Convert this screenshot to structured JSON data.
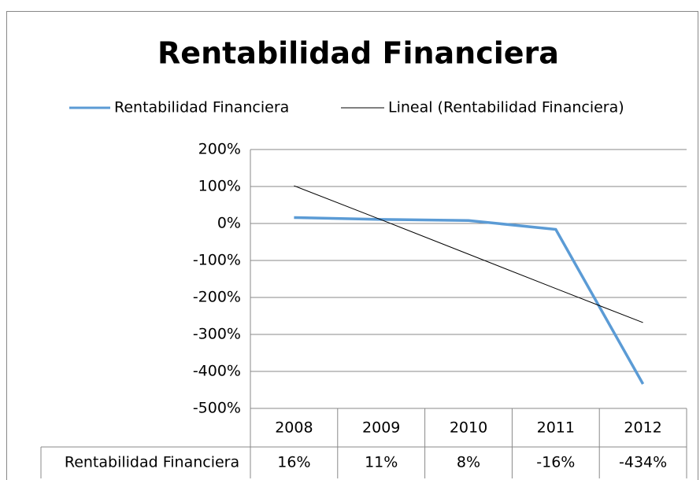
{
  "chart_data": {
    "type": "line",
    "title": "Rentabilidad Financiera",
    "categories": [
      "2008",
      "2009",
      "2010",
      "2011",
      "2012"
    ],
    "series": [
      {
        "name": "Rentabilidad Financiera",
        "color": "#5b9bd5",
        "values": [
          16,
          11,
          8,
          -16,
          -434
        ],
        "value_labels": [
          "16%",
          "11%",
          "8%",
          "-16%",
          "-434%"
        ]
      },
      {
        "name": "Lineal (Rentabilidad Financiera)",
        "color": "#000000",
        "values": [
          102,
          10,
          -83,
          -176,
          -268
        ]
      }
    ],
    "ylim": [
      -500,
      200
    ],
    "yticks": [
      {
        "value": -500,
        "label": "-500%"
      },
      {
        "value": -400,
        "label": "-400%"
      },
      {
        "value": -300,
        "label": "-300%"
      },
      {
        "value": -200,
        "label": "-200%"
      },
      {
        "value": -100,
        "label": "-100%"
      },
      {
        "value": 0,
        "label": "0%"
      },
      {
        "value": 100,
        "label": "100%"
      },
      {
        "value": 200,
        "label": "200%"
      }
    ],
    "grid": true,
    "legend": "top"
  }
}
